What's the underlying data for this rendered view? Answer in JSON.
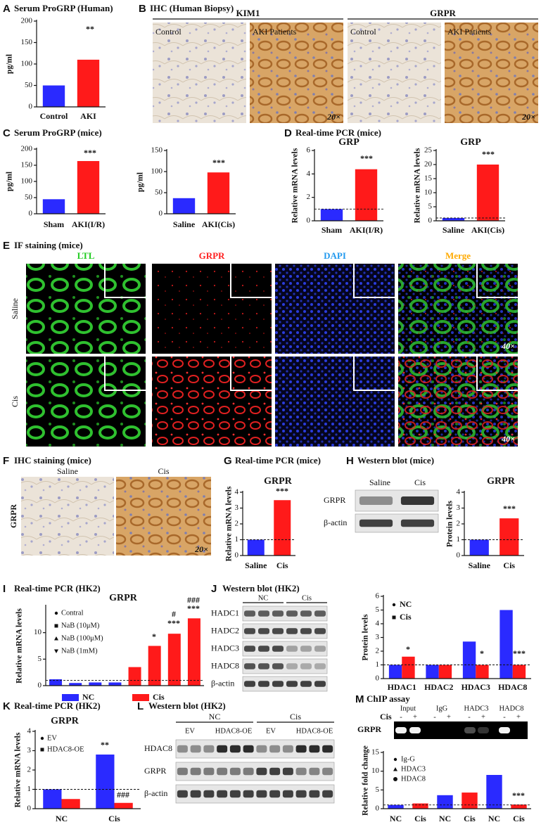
{
  "panels": [
    {
      "letter": "A",
      "title": "Serum ProGRP (Human)"
    },
    {
      "letter": "B",
      "title": "IHC (Human Biopsy)"
    },
    {
      "letter": "C",
      "title": "Serum ProGRP (mice)"
    },
    {
      "letter": "D",
      "title": "Real-time PCR (mice)"
    },
    {
      "letter": "E",
      "title": "IF staining (mice)"
    },
    {
      "letter": "F",
      "title": "IHC staining (mice)"
    },
    {
      "letter": "G",
      "title": "Real-time PCR (mice)"
    },
    {
      "letter": "H",
      "title": "Western blot (mice)"
    },
    {
      "letter": "I",
      "title": "Real-time PCR (HK2)"
    },
    {
      "letter": "J",
      "title": "Western blot (HK2)"
    },
    {
      "letter": "K",
      "title": "Real-time PCR (HK2)"
    },
    {
      "letter": "L",
      "title": "Western blot (HK2)"
    },
    {
      "letter": "M",
      "title": "ChIP assay"
    }
  ],
  "ihc_human": {
    "groups": [
      "KIM1",
      "GRPR"
    ],
    "conditions": [
      "Control",
      "AKI Patients"
    ],
    "magnification": "20×"
  },
  "if_staining": {
    "channels": [
      "LTL",
      "GRPR",
      "DAPI",
      "Merge"
    ],
    "rows": [
      "Saline",
      "Cis"
    ],
    "magnification": "40×"
  },
  "ihc_mice": {
    "columns": [
      "Saline",
      "Cis"
    ],
    "row": "GRPR",
    "magnification": "20×"
  },
  "blot_h": {
    "columns": [
      "Saline",
      "Cis"
    ],
    "rows": [
      "GRPR",
      "β-actin"
    ]
  },
  "blot_j": {
    "groups": [
      "NC",
      "Cis"
    ],
    "rows": [
      "HADC1",
      "HADC2",
      "HADC3",
      "HADC8",
      "β-actin"
    ]
  },
  "blot_l": {
    "groups": [
      "NC",
      "Cis"
    ],
    "lanes": [
      "EV",
      "HDAC8-OE"
    ],
    "rows": [
      "HDAC8",
      "GRPR",
      "β-actin"
    ]
  },
  "chip_gel": {
    "groups": [
      "Input",
      "IgG",
      "HADC3",
      "HADC8"
    ],
    "treatment": "Cis",
    "states": [
      "-",
      "+"
    ],
    "row": "GRPR"
  },
  "chart_data": [
    {
      "type": "bar",
      "ylabel": "pg/ml",
      "categories": [
        "Control",
        "AKI"
      ],
      "values": [
        50,
        110
      ],
      "colors": [
        "#2a2aff",
        "#ff1a1a"
      ],
      "ylim": [
        0,
        200
      ],
      "yticks": [
        0,
        50,
        100,
        150,
        200
      ],
      "annotations": [
        "**"
      ]
    },
    {
      "type": "bar",
      "ylabel": "pg/ml",
      "categories": [
        "Sham",
        "AKI(I/R)"
      ],
      "values": [
        45,
        163
      ],
      "colors": [
        "#2a2aff",
        "#ff1a1a"
      ],
      "ylim": [
        0,
        200
      ],
      "yticks": [
        0,
        50,
        100,
        150,
        200
      ],
      "annotations": [
        "***"
      ]
    },
    {
      "type": "bar",
      "ylabel": "pg/ml",
      "categories": [
        "Saline",
        "AKI(Cis)"
      ],
      "values": [
        37,
        98
      ],
      "colors": [
        "#2a2aff",
        "#ff1a1a"
      ],
      "ylim": [
        0,
        150
      ],
      "yticks": [
        0,
        50,
        100,
        150
      ],
      "annotations": [
        "***"
      ]
    },
    {
      "type": "bar",
      "title": "GRP",
      "ylabel": "Relative mRNA levels",
      "categories": [
        "Sham",
        "AKI(I/R)"
      ],
      "values": [
        1.0,
        4.4
      ],
      "colors": [
        "#2a2aff",
        "#ff1a1a"
      ],
      "ylim": [
        0,
        6
      ],
      "yticks": [
        0,
        2,
        4,
        6
      ],
      "reference": 1,
      "annotations": [
        "***"
      ]
    },
    {
      "type": "bar",
      "title": "GRP",
      "ylabel": "Relative mRNA levels",
      "categories": [
        "Saline",
        "AKI(Cis)"
      ],
      "values": [
        1.0,
        20
      ],
      "colors": [
        "#2a2aff",
        "#ff1a1a"
      ],
      "ylim": [
        0,
        25
      ],
      "yticks": [
        0,
        5,
        10,
        15,
        20,
        25
      ],
      "reference": 1,
      "annotations": [
        "***"
      ]
    },
    {
      "type": "bar",
      "title": "GRPR",
      "ylabel": "Relative mRNA levels",
      "categories": [
        "Saline",
        "Cis"
      ],
      "values": [
        1.0,
        3.5
      ],
      "colors": [
        "#2a2aff",
        "#ff1a1a"
      ],
      "ylim": [
        0,
        4
      ],
      "yticks": [
        0,
        1,
        2,
        3,
        4
      ],
      "reference": 1,
      "annotations": [
        "***"
      ]
    },
    {
      "type": "bar",
      "title": "GRPR",
      "ylabel": "Protein levels",
      "categories": [
        "Saline",
        "Cis"
      ],
      "values": [
        1.0,
        2.35
      ],
      "colors": [
        "#2a2aff",
        "#ff1a1a"
      ],
      "ylim": [
        0,
        4
      ],
      "yticks": [
        0,
        1,
        2,
        3,
        4
      ],
      "reference": 1,
      "annotations": [
        "***"
      ]
    },
    {
      "type": "bar",
      "title": "GRPR",
      "ylabel": "Relative mRNA levels",
      "categories": [
        "Contral",
        "NaB (10μM)",
        "NaB (100μM)",
        "NaB (1mM)"
      ],
      "series": [
        {
          "name": "NC",
          "color": "#2a2aff",
          "values": [
            1.2,
            0.5,
            0.6,
            0.6
          ]
        },
        {
          "name": "Cis",
          "color": "#ff1a1a",
          "values": [
            3.5,
            7.5,
            9.8,
            12.7
          ]
        }
      ],
      "ylim": [
        0,
        15
      ],
      "yticks": [
        0,
        5,
        10
      ],
      "reference": 1,
      "annotations": [
        "*",
        "#",
        "***",
        "###",
        "***"
      ]
    },
    {
      "type": "bar",
      "ylabel": "Protein levels",
      "categories": [
        "HDAC1",
        "HDAC2",
        "HDAC3",
        "HDAC8"
      ],
      "series": [
        {
          "name": "NC",
          "color": "#2a2aff",
          "values": [
            1.0,
            1.0,
            2.7,
            5.0
          ]
        },
        {
          "name": "Cis",
          "color": "#ff1a1a",
          "values": [
            1.6,
            1.0,
            1.0,
            1.0
          ]
        }
      ],
      "ylim": [
        0,
        6
      ],
      "yticks": [
        0,
        1,
        2,
        3,
        4,
        5,
        6
      ],
      "reference": 1,
      "annotations": [
        "*",
        "*",
        "***"
      ]
    },
    {
      "type": "bar",
      "title": "GRPR",
      "ylabel": "Relative mRNA levels",
      "categories": [
        "NC",
        "Cis"
      ],
      "series": [
        {
          "name": "EV",
          "color": "#2a2aff",
          "values": [
            1.0,
            2.8
          ]
        },
        {
          "name": "HDAC8-OE",
          "color": "#ff1a1a",
          "values": [
            0.5,
            0.3
          ]
        }
      ],
      "ylim": [
        0,
        4
      ],
      "yticks": [
        0,
        1,
        2,
        3,
        4
      ],
      "reference": 1,
      "annotations": [
        "**",
        "###"
      ]
    },
    {
      "type": "bar",
      "ylabel": "Relative fold change",
      "categories": [
        "NC",
        "Cis",
        "NC",
        "Cis",
        "NC",
        "Cis"
      ],
      "values": [
        1.0,
        1.4,
        3.6,
        4.3,
        9.0,
        1.1
      ],
      "colors": [
        "#2a2aff",
        "#ff1a1a",
        "#2a2aff",
        "#ff1a1a",
        "#2a2aff",
        "#ff1a1a"
      ],
      "legend": [
        "Ig-G",
        "HDAC3",
        "HDAC8"
      ],
      "ylim": [
        0,
        15
      ],
      "yticks": [
        0,
        5,
        10,
        15
      ],
      "reference": 1,
      "annotations": [
        "***"
      ]
    }
  ]
}
